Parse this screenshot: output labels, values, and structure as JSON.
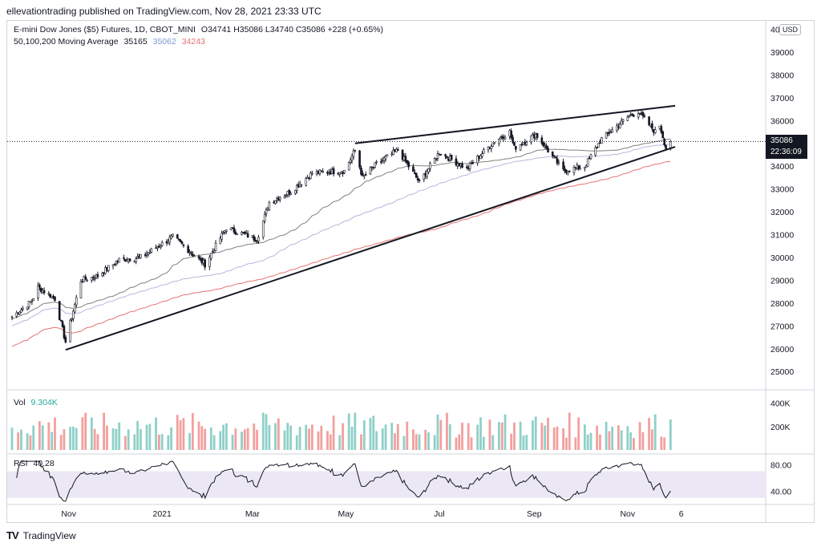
{
  "header": {
    "publisher": "ellevationtrading published on TradingView.com, Nov 28, 2021 23:33 UTC"
  },
  "legend": {
    "symbol": "E-mini Dow Jones ($5) Futures, 1D, CBOT_MINI",
    "ohlc": "O34741  H35086  L34740  C35086  +228 (+0.65%)",
    "ma_label": "50,100,200 Moving Average",
    "ma50": "35165",
    "ma100": "35062",
    "ma200": "34243",
    "vol_label": "Vol",
    "vol_value": "9.304K",
    "rsi_label": "RSI",
    "rsi_value": "40.28"
  },
  "price_axis": {
    "currency": "USD",
    "last_price": "35086",
    "countdown": "22:36:09"
  },
  "footer": {
    "brand": "TradingView"
  },
  "colors": {
    "up": "#26a69a",
    "down": "#ef5350",
    "ma50": "#808080",
    "ma100": "#b9b5dc",
    "ma200": "#e57373",
    "trendline": "#131722",
    "rsi_band": "#ebe7f5"
  },
  "chart_data": {
    "type": "candlestick",
    "title": "E-mini Dow Jones ($5) Futures, 1D, CBOT_MINI",
    "x_ticks": [
      "Nov",
      "2021",
      "Mar",
      "May",
      "Jul",
      "Sep",
      "Nov",
      "6"
    ],
    "price_ticks": [
      25000,
      26000,
      27000,
      28000,
      29000,
      30000,
      31000,
      32000,
      33000,
      34000,
      35000,
      36000,
      37000,
      38000,
      39000,
      40000
    ],
    "price_range": [
      24200,
      40300
    ],
    "close_anchors": [
      [
        "2020-09-25",
        27400
      ],
      [
        "2020-10-08",
        28100
      ],
      [
        "2020-10-12",
        28700
      ],
      [
        "2020-10-23",
        28200
      ],
      [
        "2020-10-30",
        26300
      ],
      [
        "2020-11-03",
        27400
      ],
      [
        "2020-11-09",
        29000
      ],
      [
        "2020-11-20",
        29200
      ],
      [
        "2020-12-04",
        29900
      ],
      [
        "2020-12-18",
        30000
      ],
      [
        "2021-01-08",
        30900
      ],
      [
        "2021-01-29",
        29700
      ],
      [
        "2021-02-12",
        31300
      ],
      [
        "2021-03-04",
        30800
      ],
      [
        "2021-03-12",
        32400
      ],
      [
        "2021-03-26",
        32900
      ],
      [
        "2021-04-09",
        33700
      ],
      [
        "2021-04-30",
        33800
      ],
      [
        "2021-05-07",
        34700
      ],
      [
        "2021-05-12",
        33500
      ],
      [
        "2021-05-21",
        34100
      ],
      [
        "2021-06-04",
        34700
      ],
      [
        "2021-06-18",
        33300
      ],
      [
        "2021-07-01",
        34600
      ],
      [
        "2021-07-19",
        33900
      ],
      [
        "2021-08-06",
        35100
      ],
      [
        "2021-08-16",
        35500
      ],
      [
        "2021-08-19",
        34800
      ],
      [
        "2021-09-02",
        35400
      ],
      [
        "2021-09-20",
        33800
      ],
      [
        "2021-10-04",
        34000
      ],
      [
        "2021-10-15",
        35200
      ],
      [
        "2021-11-02",
        36200
      ],
      [
        "2021-11-08",
        36400
      ],
      [
        "2021-11-19",
        35500
      ],
      [
        "2021-11-22",
        35800
      ],
      [
        "2021-11-26",
        34800
      ],
      [
        "2021-11-29",
        35086
      ]
    ],
    "trendlines": {
      "upper": [
        [
          "2021-05-07",
          35000
        ],
        [
          "2021-12-02",
          36650
        ]
      ],
      "lower": [
        [
          "2020-10-30",
          25950
        ],
        [
          "2021-12-02",
          34850
        ]
      ]
    },
    "moving_averages": [
      {
        "name": "50",
        "last": 35165
      },
      {
        "name": "100",
        "last": 35062
      },
      {
        "name": "200",
        "last": 34243
      }
    ],
    "volume": {
      "ticks": [
        "200K",
        "400K"
      ],
      "last": "9.304K"
    },
    "rsi": {
      "ticks": [
        40,
        80
      ],
      "band": [
        30,
        70
      ],
      "last": 40.28
    }
  }
}
